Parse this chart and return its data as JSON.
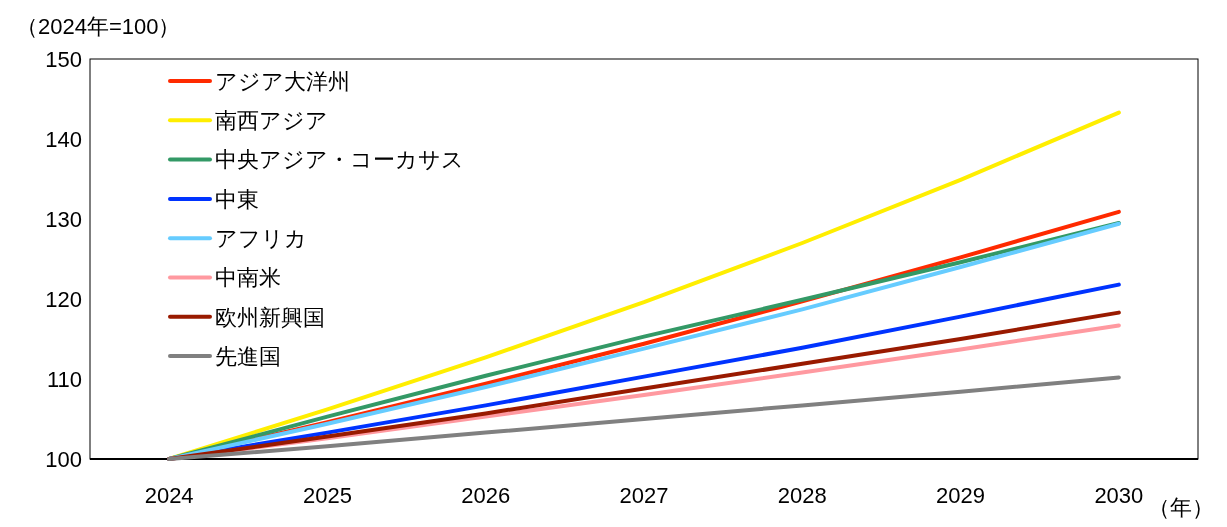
{
  "chart_data": {
    "type": "line",
    "ylabel": "（2024年=100）",
    "xlabel": "（年）",
    "categories": [
      "2024",
      "2025",
      "2026",
      "2027",
      "2028",
      "2029",
      "2030"
    ],
    "ylim": [
      100,
      150
    ],
    "yticks": [
      100,
      110,
      120,
      130,
      140,
      150
    ],
    "grid": false,
    "legend": "top left",
    "marker": "none",
    "line_style": "solid",
    "series": [
      {
        "name": "アジア大洋州",
        "color": "#ff2a00",
        "values": [
          100,
          104.6,
          109.4,
          114.4,
          119.7,
          125.2,
          130.9
        ]
      },
      {
        "name": "南西アジア",
        "color": "#ffee00",
        "values": [
          100,
          106.2,
          112.7,
          119.6,
          127.0,
          134.9,
          143.3
        ]
      },
      {
        "name": "中央アジア・コーカサス",
        "color": "#339966",
        "values": [
          100,
          105.3,
          110.4,
          115.3,
          119.9,
          124.6,
          129.5
        ]
      },
      {
        "name": "中東",
        "color": "#0033ff",
        "values": [
          100,
          103.3,
          106.7,
          110.3,
          113.9,
          117.8,
          121.8
        ]
      },
      {
        "name": "アフリカ",
        "color": "#66ccff",
        "values": [
          100,
          104.4,
          109.0,
          113.8,
          118.7,
          124.0,
          129.4
        ]
      },
      {
        "name": "中南米",
        "color": "#ff99a0",
        "values": [
          100,
          102.6,
          105.3,
          108.0,
          110.8,
          113.7,
          116.7
        ]
      },
      {
        "name": "欧州新興国",
        "color": "#991a00",
        "values": [
          100,
          102.8,
          105.7,
          108.8,
          111.9,
          115.0,
          118.3
        ]
      },
      {
        "name": "先進国",
        "color": "#808080",
        "values": [
          100,
          101.6,
          103.3,
          105.0,
          106.7,
          108.4,
          110.2
        ]
      }
    ]
  }
}
